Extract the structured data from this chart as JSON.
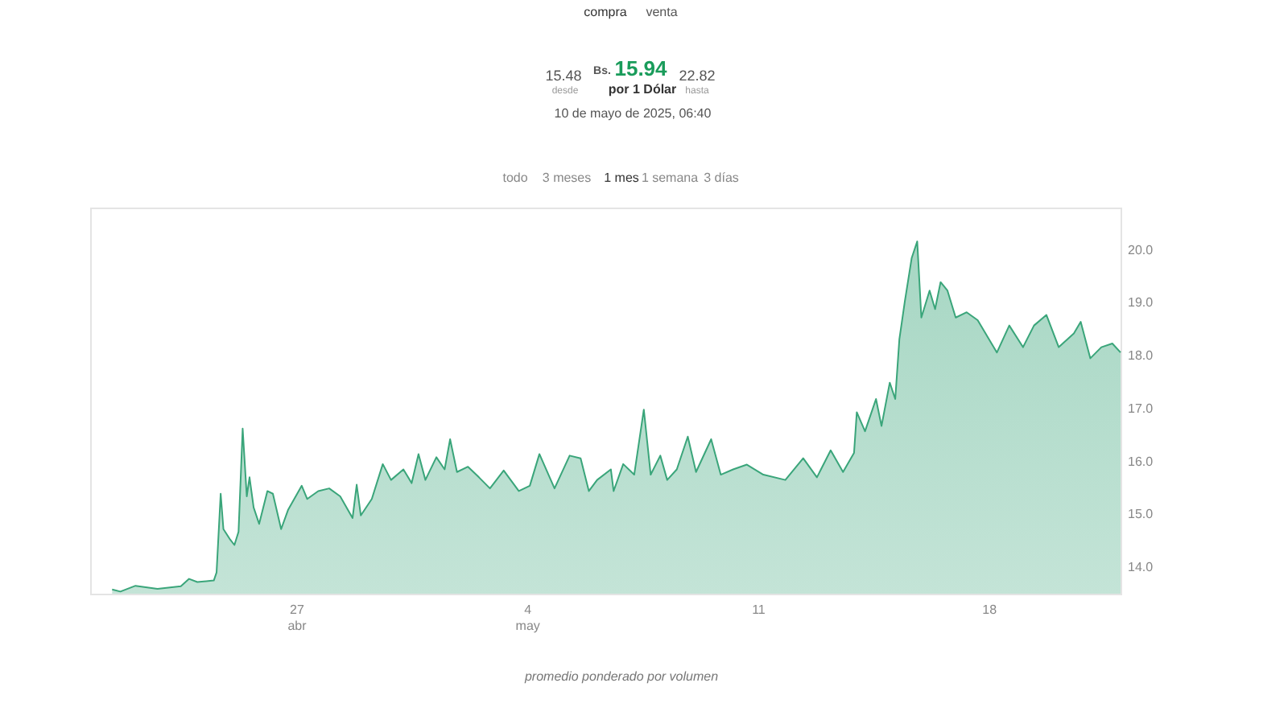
{
  "chart_data": {
    "type": "area",
    "annotations": [
      "compra",
      "venta",
      "15.48",
      "desde",
      "Bs.",
      "15.94",
      "por 1 Dólar",
      "22.82",
      "hasta",
      "10 de mayo de 2025, 06:40",
      "todo",
      "3 meses",
      "1 mes",
      "1 semana",
      "3 días",
      "promedio ponderado por volumen"
    ],
    "x": [
      "2025-04-21T10:00",
      "2025-04-21T16:00",
      "2025-04-22T03:00",
      "2025-04-22T19:00",
      "2025-04-23T12:00",
      "2025-04-23T18:00",
      "2025-04-24T00:00",
      "2025-04-24T12:00",
      "2025-04-24T14:00",
      "2025-04-24T17:00",
      "2025-04-24T19:00",
      "2025-04-25T00:00",
      "2025-04-25T03:00",
      "2025-04-25T06:00",
      "2025-04-25T09:00",
      "2025-04-25T12:00",
      "2025-04-25T14:00",
      "2025-04-25T17:00",
      "2025-04-25T21:00",
      "2025-04-26T03:00",
      "2025-04-26T07:00",
      "2025-04-26T13:00",
      "2025-04-26T18:00",
      "2025-04-27T04:00",
      "2025-04-27T08:00",
      "2025-04-27T16:00",
      "2025-04-28T00:00",
      "2025-04-28T08:00",
      "2025-04-28T17:00",
      "2025-04-28T20:00",
      "2025-04-28T23:00",
      "2025-04-29T07:00",
      "2025-04-29T15:00",
      "2025-04-29T21:00",
      "2025-04-30T06:00",
      "2025-04-30T12:00",
      "2025-04-30T17:00",
      "2025-04-30T22:00",
      "2025-05-01T06:00",
      "2025-05-01T12:00",
      "2025-05-01T16:00",
      "2025-05-01T21:00",
      "2025-05-02T05:00",
      "2025-05-02T13:00",
      "2025-05-02T21:00",
      "2025-05-03T07:00",
      "2025-05-03T18:00",
      "2025-05-04T02:00",
      "2025-05-04T09:00",
      "2025-05-04T20:00",
      "2025-05-05T07:00",
      "2025-05-05T15:00",
      "2025-05-05T21:00",
      "2025-05-06T03:00",
      "2025-05-06T13:00",
      "2025-05-06T15:00",
      "2025-05-06T22:00",
      "2025-05-07T06:00",
      "2025-05-07T13:00",
      "2025-05-07T18:00",
      "2025-05-08T01:00",
      "2025-05-08T06:00",
      "2025-05-08T13:00",
      "2025-05-08T21:00",
      "2025-05-09T03:00",
      "2025-05-09T14:00",
      "2025-05-09T21:00",
      "2025-05-10T06:00",
      "2025-05-10T16:00",
      "2025-05-11T04:00",
      "2025-05-11T20:00",
      "2025-05-12T09:00",
      "2025-05-12T19:00",
      "2025-05-13T05:00",
      "2025-05-13T14:00",
      "2025-05-13T22:00",
      "2025-05-14T00:00",
      "2025-05-14T06:00",
      "2025-05-14T14:00",
      "2025-05-14T18:00",
      "2025-05-15T00:00",
      "2025-05-15T04:00",
      "2025-05-15T07:00",
      "2025-05-15T11:00",
      "2025-05-15T16:00",
      "2025-05-15T20:00",
      "2025-05-15T23:00",
      "2025-05-16T05:00",
      "2025-05-16T09:00",
      "2025-05-16T13:00",
      "2025-05-16T18:00",
      "2025-05-17T00:00",
      "2025-05-17T08:00",
      "2025-05-17T16:00",
      "2025-05-18T06:00",
      "2025-05-18T15:00",
      "2025-05-19T01:00",
      "2025-05-19T09:00",
      "2025-05-19T18:00",
      "2025-05-20T03:00",
      "2025-05-20T14:00",
      "2025-05-20T19:00",
      "2025-05-21T02:00",
      "2025-05-21T10:00",
      "2025-05-21T18:00",
      "2025-05-22T00:00"
    ],
    "series": [
      {
        "color": "#3aa57a",
        "values": [
          13.58,
          13.54,
          13.65,
          13.59,
          13.64,
          13.78,
          13.72,
          13.75,
          13.9,
          15.39,
          14.72,
          14.52,
          14.42,
          14.67,
          16.62,
          15.34,
          15.7,
          15.13,
          14.82,
          15.44,
          15.39,
          14.72,
          15.08,
          15.54,
          15.29,
          15.44,
          15.49,
          15.34,
          14.93,
          15.56,
          14.98,
          15.29,
          15.95,
          15.65,
          15.85,
          15.59,
          16.14,
          15.65,
          16.08,
          15.85,
          16.42,
          15.8,
          15.9,
          15.7,
          15.49,
          15.83,
          15.44,
          15.54,
          16.14,
          15.49,
          16.11,
          16.06,
          15.44,
          15.65,
          15.85,
          15.44,
          15.95,
          15.75,
          16.98,
          15.75,
          16.11,
          15.65,
          15.85,
          16.47,
          15.8,
          16.42,
          15.75,
          15.85,
          15.94,
          15.75,
          15.65,
          16.06,
          15.7,
          16.21,
          15.8,
          16.16,
          16.93,
          16.57,
          17.18,
          16.67,
          17.49,
          17.18,
          18.31,
          19.03,
          19.85,
          20.16,
          18.72,
          19.23,
          18.88,
          19.39,
          19.23,
          18.72,
          18.82,
          18.67,
          18.06,
          18.57,
          18.16,
          18.57,
          18.77,
          18.16,
          18.42,
          18.64,
          17.95,
          18.16,
          18.23,
          18.06
        ]
      }
    ],
    "xlim": [
      "2025-04-20T18:00",
      "2025-05-22T00:00"
    ],
    "xticks": [
      {
        "value": "2025-04-27T00:00",
        "label": "27\nabr"
      },
      {
        "value": "2025-05-04T00:00",
        "label": "4\nmay"
      },
      {
        "value": "2025-05-11T00:00",
        "label": "11"
      },
      {
        "value": "2025-05-18T00:00",
        "label": "18"
      }
    ],
    "ylim": [
      13.5,
      20.8
    ],
    "yticks": [
      {
        "value": 14,
        "label": "14.0"
      },
      {
        "value": 15,
        "label": "15.0"
      },
      {
        "value": 16,
        "label": "16.0"
      },
      {
        "value": 17,
        "label": "17.0"
      },
      {
        "value": 18,
        "label": "18.0"
      },
      {
        "value": 19,
        "label": "19.0"
      },
      {
        "value": 20,
        "label": "20.0"
      }
    ],
    "grid": false
  }
}
